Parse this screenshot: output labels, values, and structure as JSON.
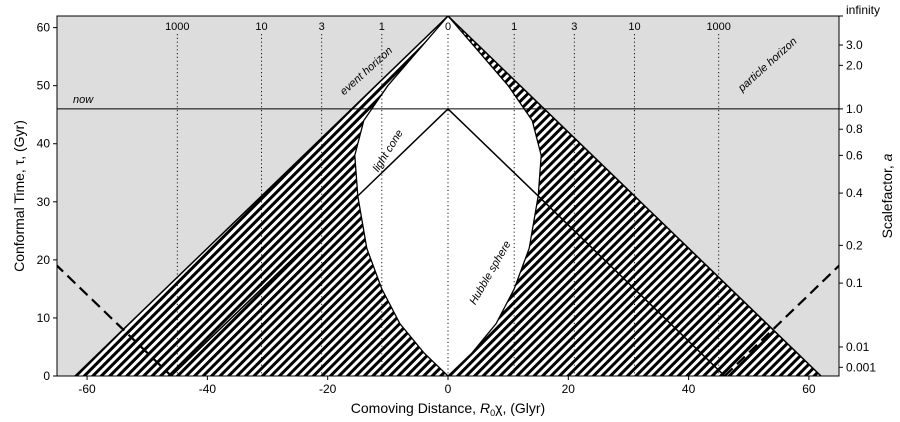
{
  "chart_data": {
    "type": "line",
    "title": "",
    "xlabel_prefix": "Comoving Distance, ",
    "xlabel_symbol": "R",
    "xlabel_sub": "0",
    "xlabel_suffix": "χ, (Glyr)",
    "ylabel": "Conformal Time, τ, (Gyr)",
    "y2label_prefix": "Scalefactor, ",
    "y2label_symbol": "a",
    "xlim": [
      -65,
      65
    ],
    "ylim": [
      0,
      62
    ],
    "x_ticks": [
      -60,
      -40,
      -20,
      0,
      20,
      40,
      60
    ],
    "x_tick_labels": [
      "-60",
      "-40",
      "-20",
      "0",
      "20",
      "40",
      "60"
    ],
    "y_ticks": [
      0,
      10,
      20,
      30,
      40,
      50,
      60
    ],
    "y_tick_labels": [
      "0",
      "10",
      "20",
      "30",
      "40",
      "50",
      "60"
    ],
    "now_tau": 46,
    "end_tau": 62,
    "particle_horizon_x": 46,
    "scalefactor_ticks": [
      {
        "label": "infinity",
        "tau": 62
      },
      {
        "label": "3.0",
        "tau": 57
      },
      {
        "label": "2.0",
        "tau": 53.5
      },
      {
        "label": "1.0",
        "tau": 46
      },
      {
        "label": "0.8",
        "tau": 42.5
      },
      {
        "label": "0.6",
        "tau": 38
      },
      {
        "label": "0.4",
        "tau": 31.5
      },
      {
        "label": "0.2",
        "tau": 22.5
      },
      {
        "label": "0.1",
        "tau": 16
      },
      {
        "label": "0.01",
        "tau": 5
      },
      {
        "label": "0.001",
        "tau": 1.5
      }
    ],
    "redshift_lines": [
      {
        "label": "1000",
        "x": -45
      },
      {
        "label": "10",
        "x": -31
      },
      {
        "label": "3",
        "x": -21
      },
      {
        "label": "1",
        "x": -11
      },
      {
        "label": "0",
        "x": 0
      },
      {
        "label": "1",
        "x": 11
      },
      {
        "label": "3",
        "x": 21
      },
      {
        "label": "10",
        "x": 31
      },
      {
        "label": "1000",
        "x": 45
      }
    ],
    "hubble_sphere": [
      {
        "x": 0,
        "y": 0
      },
      {
        "x": 4,
        "y": 4
      },
      {
        "x": 8,
        "y": 9
      },
      {
        "x": 11,
        "y": 15
      },
      {
        "x": 13.5,
        "y": 22
      },
      {
        "x": 15,
        "y": 31
      },
      {
        "x": 15.5,
        "y": 38
      },
      {
        "x": 14,
        "y": 44
      },
      {
        "x": 10,
        "y": 50
      },
      {
        "x": 5,
        "y": 56
      },
      {
        "x": 0,
        "y": 62
      }
    ],
    "annotations": {
      "now": "now",
      "event_horizon": "event horizon",
      "particle_horizon": "particle horizon",
      "light_cone": "light cone",
      "hubble_sphere": "Hubble sphere"
    },
    "colors": {
      "shade": "#dddddd",
      "line": "#000000",
      "background": "#ffffff"
    }
  }
}
